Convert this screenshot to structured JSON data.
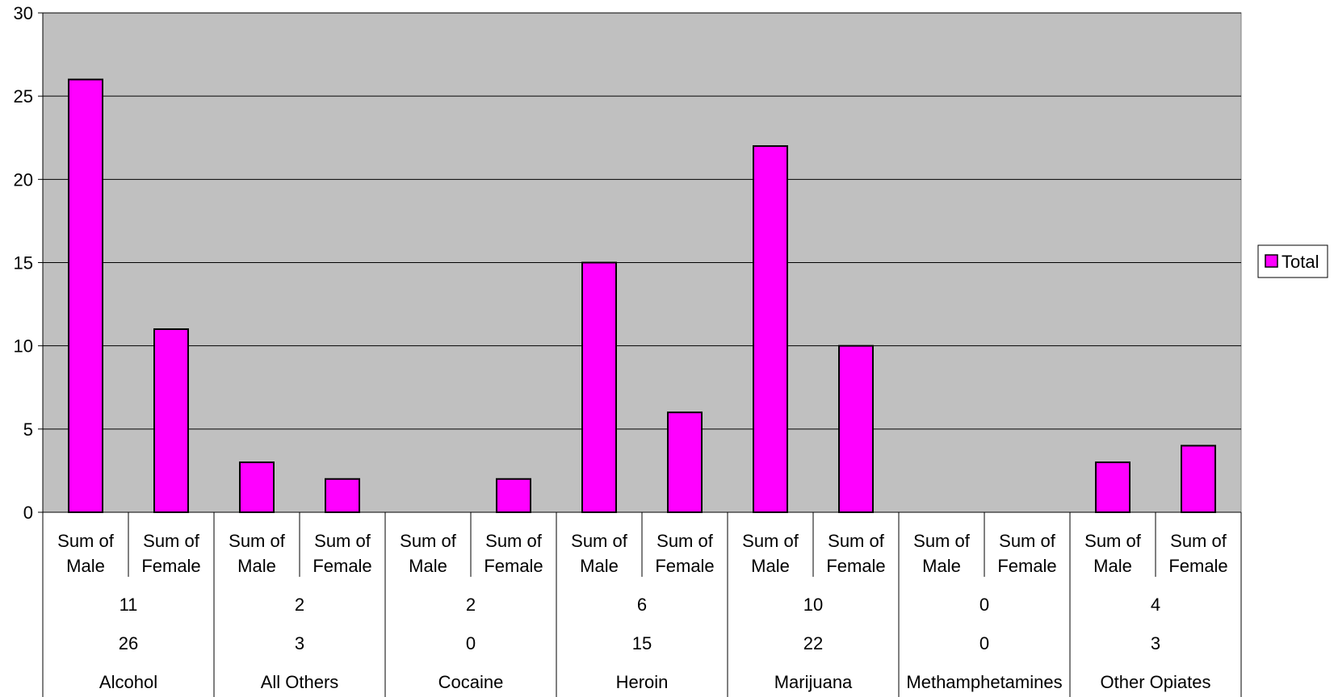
{
  "chart_data": {
    "type": "bar",
    "title": "",
    "xlabel": "",
    "ylabel": "",
    "ylim": [
      0,
      30
    ],
    "yticks": [
      0,
      5,
      10,
      15,
      20,
      25,
      30
    ],
    "grid": true,
    "legend_position": "right",
    "plot_background": "#c0c0c0",
    "groups": [
      "Alcohol",
      "All Others",
      "Cocaine",
      "Heroin",
      "Marijuana",
      "Methamphetamines",
      "Other Opiates"
    ],
    "group_row_1": [
      "11",
      "2",
      "2",
      "6",
      "10",
      "0",
      "4"
    ],
    "group_row_2": [
      "26",
      "3",
      "0",
      "15",
      "22",
      "0",
      "3"
    ],
    "subcategories": [
      [
        "Sum of",
        "Male"
      ],
      [
        "Sum of",
        "Female"
      ],
      [
        "Sum of",
        "Male"
      ],
      [
        "Sum of",
        "Female"
      ],
      [
        "Sum of",
        "Male"
      ],
      [
        "Sum of",
        "Female"
      ],
      [
        "Sum of",
        "Male"
      ],
      [
        "Sum of",
        "Female"
      ],
      [
        "Sum of",
        "Male"
      ],
      [
        "Sum of",
        "Female"
      ],
      [
        "Sum of",
        "Male"
      ],
      [
        "Sum of",
        "Female"
      ],
      [
        "Sum of",
        "Male"
      ],
      [
        "Sum of",
        "Female"
      ]
    ],
    "series": [
      {
        "name": "Total",
        "color": "#ff00ff",
        "values": [
          26,
          11,
          3,
          2,
          0,
          2,
          15,
          6,
          22,
          10,
          0,
          0,
          3,
          4
        ]
      }
    ]
  }
}
